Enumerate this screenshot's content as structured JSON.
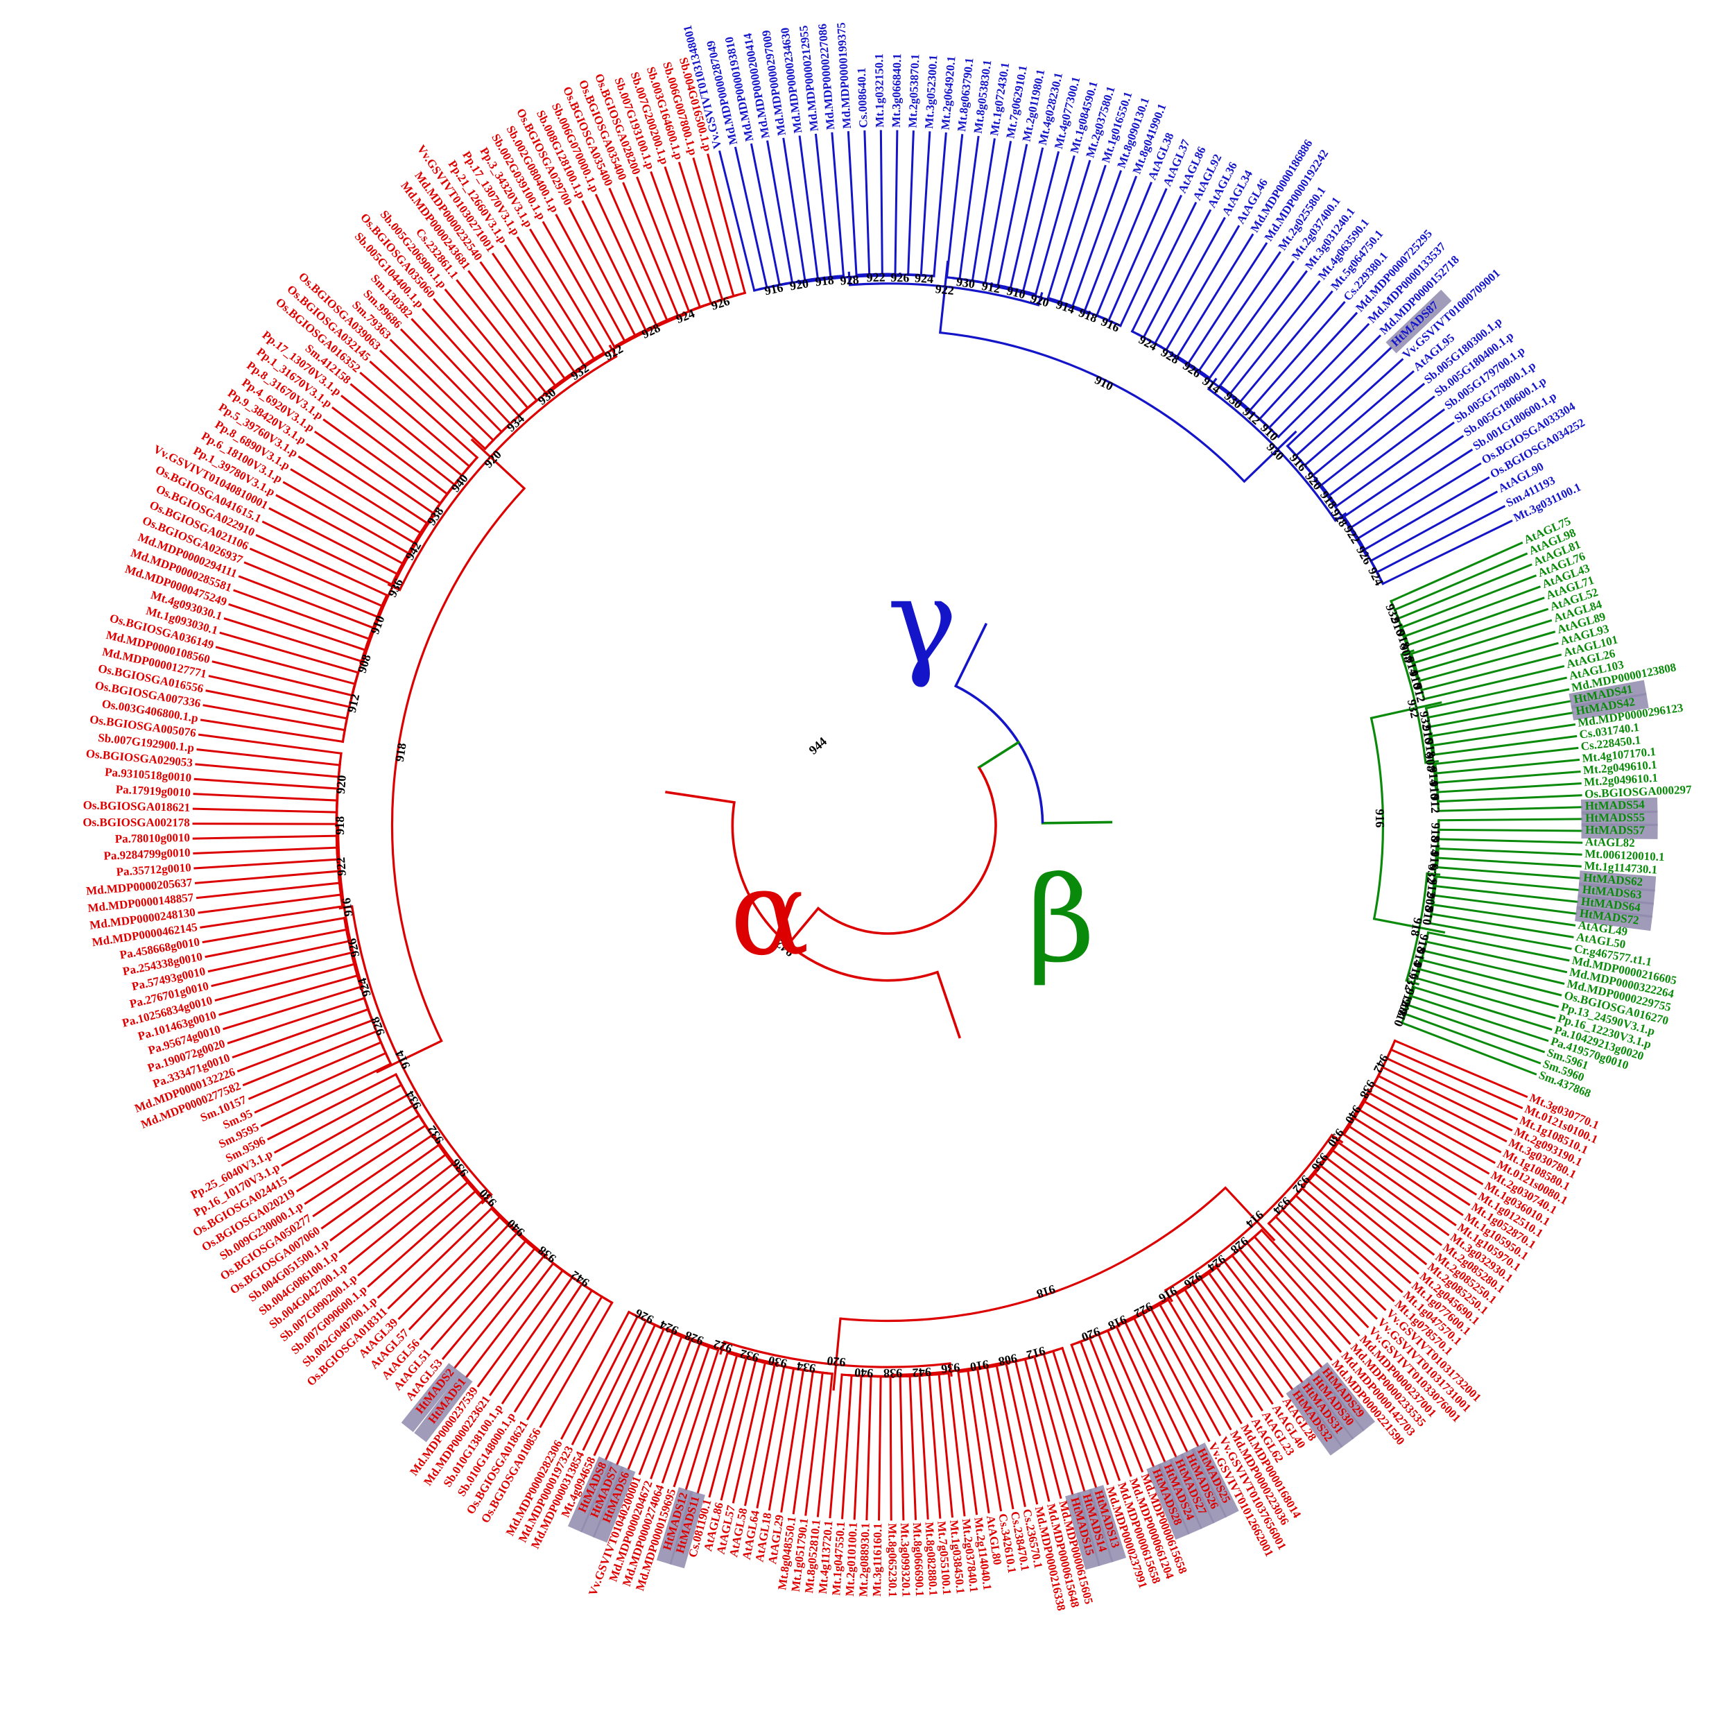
{
  "colors": {
    "alpha": "#dd0000",
    "beta": "#0a8a0a",
    "gamma": "#1414c8",
    "highlight": "#8f8aad",
    "background": "#ffffff",
    "node_label": "#000000"
  },
  "figure": {
    "type": "circular phylogenetic tree",
    "labels": {
      "gamma": "γ",
      "alpha": "α",
      "beta": "β"
    },
    "root_node_label": "944",
    "internal_node_labels": {
      "gamma": [
        "916",
        "918",
        "920",
        "922",
        "924",
        "926",
        "928",
        "930",
        "910",
        "912",
        "914"
      ],
      "beta": [
        "932",
        "918",
        "916",
        "914",
        "912",
        "910",
        "908"
      ],
      "alpha": [
        "942",
        "940",
        "938",
        "936",
        "934",
        "932",
        "930",
        "928",
        "926",
        "924",
        "922",
        "920",
        "918",
        "916",
        "914",
        "912",
        "910",
        "908"
      ]
    }
  },
  "clades": {
    "gamma": {
      "leaves": [
        "Vv.GSVIVT01031348001",
        "Md.MDP0000287049",
        "Md.MDP0000193810",
        "Md.MDP0000200414",
        "Md.MDP0000297009",
        "Md.MDP0000234630",
        "Md.MDP0000212955",
        "Md.MDP0000227086",
        "Md.MDP0000199375",
        "Cs.008640.1",
        "Mt.1g032150.1",
        "Mt.3g066840.1",
        "Mt.2g053870.1",
        "Mt.3g052300.1",
        "Mt.2g064920.1",
        "Mt.8g063790.1",
        "Mt.8g053830.1",
        "Mt.1g072430.1",
        "Mt.7g062910.1",
        "Mt.2g011980.1",
        "Mt.4g028230.1",
        "Mt.4g077300.1",
        "Mt.1g084590.1",
        "Mt.2g037580.1",
        "Mt.1g016550.1",
        "Mt.8g090130.1",
        "Mt.8g041990.1",
        "AtAGL38",
        "AtAGL37",
        "AtAGL86",
        "AtAGL92",
        "AtAGL36",
        "AtAGL34",
        "AtAGL46",
        "Md.MDP0000186886",
        "Md.MDP0000192242",
        "Mt.2g025580.1",
        "Mt.2g037400.1",
        "Mt.3g031240.1",
        "Mt.4g063590.1",
        "Mt.5g064750.1",
        "Cs.229380.1",
        "Md.MDP0000725295",
        "Md.MDP0000133537",
        "Md.MDP0000152718",
        "HtMADS87",
        "Vv.GSVIVT01000709001",
        "AtAGL95",
        "Sb.005G180300.1.p",
        "Sb.005G180400.1.p",
        "Sb.005G179700.1.p",
        "Sb.005G179800.1.p",
        "Sb.005G180600.1.p",
        "Sb.001G180600.1.p",
        "Os.BGIOSGA033304",
        "Os.BGIOSGA034252",
        "AtAGL90",
        "Sm.411193",
        "Mt.3g031100.1"
      ]
    },
    "beta": {
      "leaves": [
        "AtAGL75",
        "AtAGL98",
        "AtAGL81",
        "AtAGL76",
        "AtAGL43",
        "AtAGL71",
        "AtAGL52",
        "AtAGL84",
        "AtAGL89",
        "AtAGL93",
        "AtAGL101",
        "AtAGL26",
        "AtAGL103",
        "Md.MDP0000123808",
        "HtMADS41",
        "HtMADS42",
        "Md.MDP0000296123",
        "Cs.031740.1",
        "Cs.228450.1",
        "Mt.4g107170.1",
        "Mt.2g049610.1",
        "Mt.2g049610.1",
        "Os.BGIOSGA000297",
        "HtMADS54",
        "HtMADS55",
        "HtMADS57",
        "AtAGL82",
        "Mt.006120010.1",
        "Mt.1g114730.1",
        "HtMADS62",
        "HtMADS63",
        "HtMADS64",
        "HtMADS72",
        "AtAGL49",
        "AtAGL50",
        "Cr.g467577.t1.1",
        "Md.MDP0000216605",
        "Md.MDP0000322264",
        "Md.MDP0000229755",
        "Os.BGIOSGA016270",
        "Pp.13_24590V3.1.p",
        "Pp.16_12230V3.1.p",
        "Pa.10429213g0020",
        "Pa.419570g0010",
        "Sm.5961",
        "Sm.5960",
        "Sm.437868"
      ]
    },
    "alpha_right": {
      "leaves": [
        "Mt.3g030770.1",
        "Mt.0121s0100.1",
        "Mt.1g108510.1",
        "Mt.2g093190.1",
        "Mt.3g030780.1",
        "Mt.1g108580.1",
        "Mt.0121s0080.1",
        "Mt.2g030740.1",
        "Mt.1g036010.1",
        "Mt.1g012510.1",
        "Mt.1g052870.1",
        "Mt.1g105950.1",
        "Mt.1g105970.1",
        "Mt.3g032930.1",
        "Mt.2g085280.1",
        "Mt.2g085250.1",
        "Mt.2g085250.1",
        "Mt.2g045690.1",
        "Mt.1g077600.1",
        "Mt.1g047570.1",
        "Mt.1g078570.1",
        "Vv.GSVIVT01031732001",
        "Vv.GSVIVT01031731001",
        "Vv.GSVIVT01033076001",
        "Md.MDP0000237001",
        "Md.MDP0000233535",
        "Md.MDP0000142703",
        "Md.MDP0000221590",
        "HtMADS29",
        "HtMADS30",
        "HtMADS31",
        "HtMADS32",
        "AtAGL28",
        "AtAGL40",
        "AtAGL23",
        "AtAGL62",
        "Md.MDP0000168014",
        "Md.MDP0000223036",
        "Vv.GSVIVT01037656001",
        "Vv.GSVIVT01012662001",
        "HtMADS25",
        "HtMADS26",
        "HtMADS27",
        "HtMADS24",
        "HtMADS28",
        "Md.MDP0000615658",
        "Md.MDP0000661204",
        "Md.MDP0000615658",
        "Md.MDP0000237991",
        "HtMADS13",
        "HtMADS14",
        "HtMADS15",
        "Md.MDP0000615605",
        "Md.MDP0000615648",
        "Md.MDP0000216338",
        "Cs.236570.1",
        "Cs.238470.1",
        "Cs.342610.1",
        "AtAGL80",
        "Mt.2g114040.1",
        "Mt.2g037840.1",
        "Mt.1g038450.1",
        "Mt.7g055100.1",
        "Mt.8g082880.1",
        "Mt.8g066690.1",
        "Mt.3g099320.1",
        "Mt.8g065230.1",
        "Mt.3g116160.1",
        "Mt.2g088930.1",
        "Mt.2g010100.1",
        "Mt.1g047550.1",
        "Mt.4g113720.1",
        "Mt.8g052810.1",
        "Mt.1g051790.1",
        "Mt.8g048550.1",
        "AtAGL29",
        "AtAGL18",
        "AtAGL64",
        "AtAGL58",
        "AtAGL57",
        "AtAGL86",
        "Cs.081190.1",
        "HtMADS11",
        "HtMADS12",
        "Md.MDP0000159695",
        "Md.MDP0000274064",
        "Md.MDP0000204672",
        "Vv.GSVIVT01040200001",
        "HtMADS6",
        "HtMADS7",
        "HtMADS8",
        "Mt.4g094658",
        "Md.MDP0000313854",
        "Md.MDP0000197323",
        "Md.MDP0000282306"
      ]
    },
    "alpha_left": {
      "leaves": [
        "Os.BGIOSGA010856",
        "Os.BGIOSGA018621",
        "Sb.010G148000.1.p",
        "Sb.010G138100.1.p",
        "Md.MDP0000223621",
        "Md.MDP0000237539",
        "HtMADS1",
        "HtMADS2",
        "AtAGL53",
        "AtAGL51",
        "AtAGL56",
        "AtAGL57",
        "AtAGL39",
        "Os.BGIOSGA018311",
        "Sb.002G040700.1.p",
        "Sb.007G090600.1.p",
        "Sb.007G090200.1.p",
        "Sb.004G042700.1.p",
        "Sb.004G086100.1.p",
        "Sb.004G051500.1.p",
        "Os.BGIOSGA007060",
        "Os.BGIOSGA050277",
        "Sb.009G230000.1.p",
        "Os.BGIOSGA020219",
        "Os.BGIOSGA024415",
        "Pp.16_10170V3.1.p",
        "Pp.25_6040V3.1.p",
        "Sm.9596",
        "Sm.9595",
        "Sm.95",
        "Sm.10157",
        "Md.MDP0000277582",
        "Md.MDP0000132226",
        "Pa.333471g0010",
        "Pa.190072g0020",
        "Pa.95674g0010",
        "Pa.101463g0010",
        "Pa.10256834g0010",
        "Pa.276701g0010",
        "Pa.57493g0010",
        "Pa.254338g0010",
        "Pa.458668g0010",
        "Md.MDP0000462145",
        "Md.MDP0000248130",
        "Md.MDP0000148857",
        "Md.MDP0000205637",
        "Pa.35712g0010",
        "Pa.9284799g0010",
        "Pa.78010g0010",
        "Os.BGIOSGA002178",
        "Os.BGIOSGA018621",
        "Pa.17919g0010",
        "Pa.9310518g0010",
        "Os.BGIOSGA029053",
        "Sb.007G192900.1.p",
        "Os.BGIOSGA005076",
        "Os.003G406800.1.p",
        "Os.BGIOSGA007336",
        "Os.BGIOSGA016556",
        "Md.MDP0000127771",
        "Md.MDP0000108560",
        "Os.BGIOSGA036149",
        "Mt.1g093030.1",
        "Mt.4g093030.1",
        "Md.MDP0000475249",
        "Md.MDP0000285581",
        "Md.MDP0000294111",
        "Os.BGIOSGA026937",
        "Os.BGIOSGA021106",
        "Os.BGIOSGA022910",
        "Os.BGIOSGA041615.1",
        "Vv.GSVIVT01040810001",
        "Pp.1_39780V3.1.p",
        "Pp.6_18100V3.1.p",
        "Pp.8_6890V3.1.p",
        "Pp.5_39760V3.1.p",
        "Pp.9_38420V3.1.p",
        "Pp.4_6920V3.1.p",
        "Pp.8_31670V3.1.p",
        "Pp.1_31670V3.1.p",
        "Pp.17_13070V3.1.p",
        "Sm.412158",
        "Os.BGIOSGA016352",
        "Os.BGIOSGA032145",
        "Os.BGIOSGA039063",
        "Sm.79363",
        "Sm.99686",
        "Sm.130382",
        "Sb.005G104400.1.p",
        "Os.BGIOSGA035060",
        "Sb.005G206900.1.p",
        "Cs.232861.1",
        "Md.MDP0000243681",
        "Md.MDP0000232540",
        "Vv.GSVIVT01030271001",
        "Pp.21_12660V3.1.p",
        "Pp.17_13070V3.1.p",
        "Pp.3_34320V3.1.p",
        "Sb.002G039100.1.p",
        "Sb.002G080400.1.p",
        "Os.BGIOSGA029700",
        "Sb.008G128100.1.p",
        "Sb.006G070000.1.p",
        "Os.BGIOSGA035400",
        "Os.BGIOSGA035400",
        "Os.BGIOSGA028200",
        "Sb.007G193100.1.p",
        "Sb.007G200200.1.p",
        "Sb.003G164600.1.p",
        "Sb.006G007800.1.p",
        "Sb.004G016500.1.p"
      ]
    }
  }
}
